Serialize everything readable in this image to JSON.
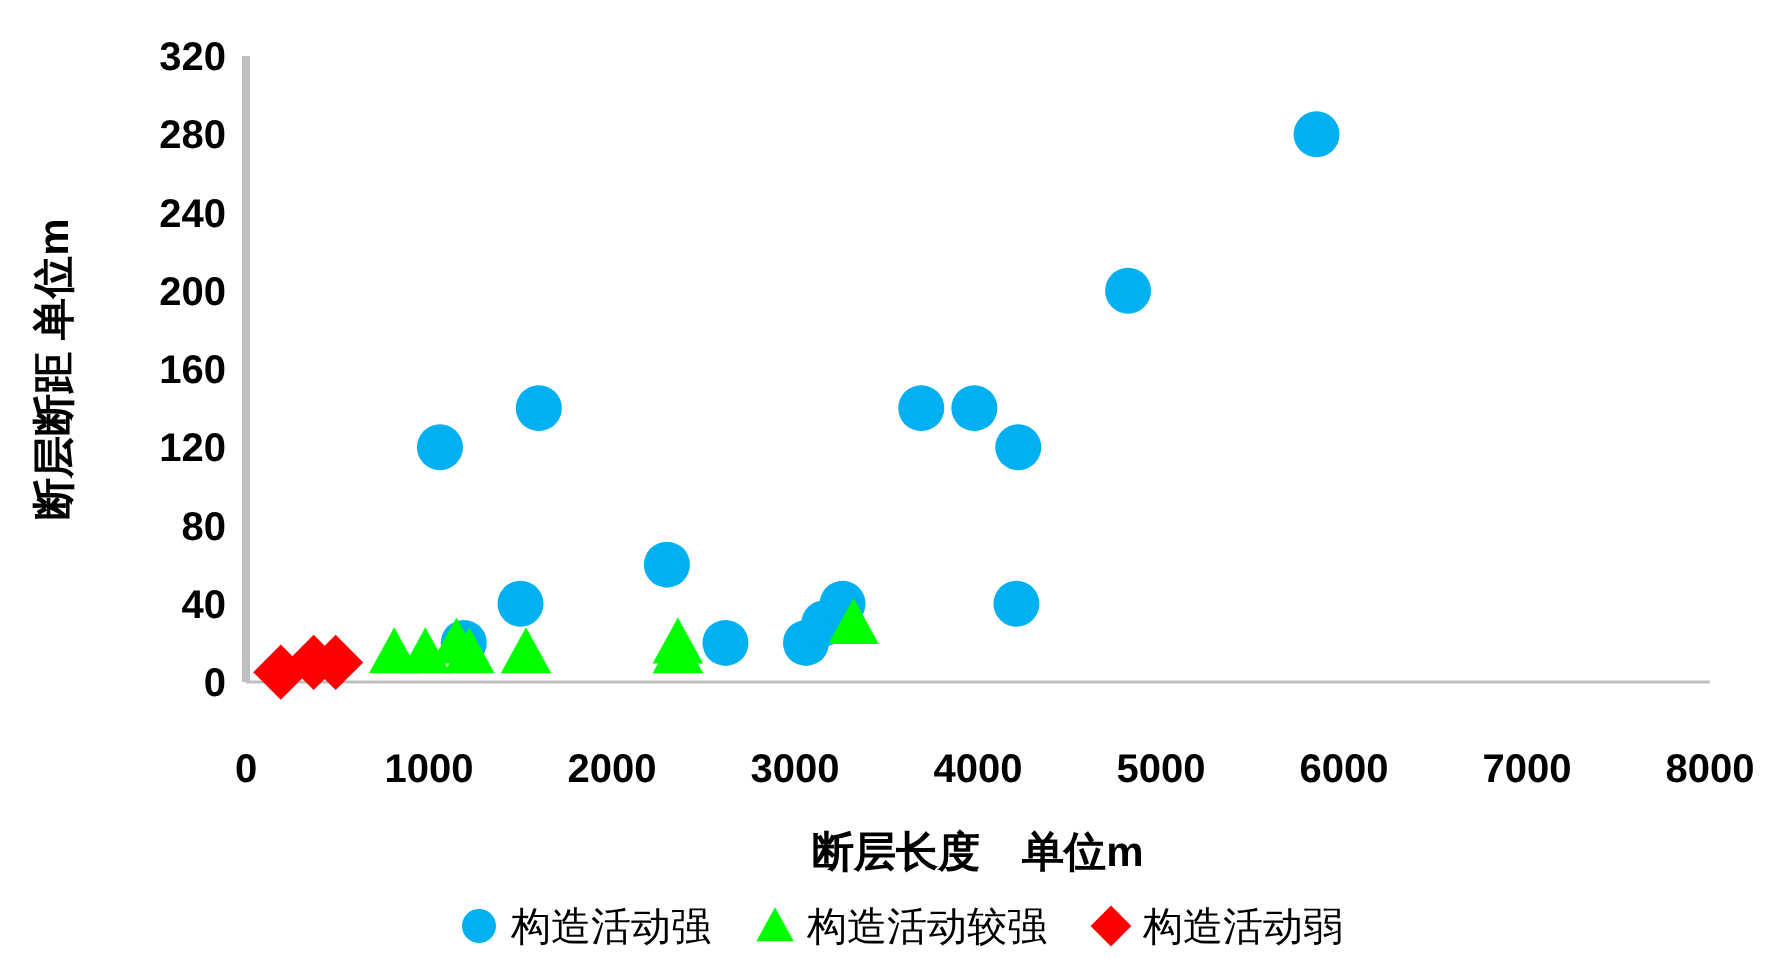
{
  "chart_data": {
    "type": "scatter",
    "xlabel": "断层长度　单位m",
    "ylabel": "断层断距 单位m",
    "xlim": [
      0,
      8000
    ],
    "ylim": [
      0,
      320
    ],
    "xticks": [
      0,
      1000,
      2000,
      3000,
      4000,
      5000,
      6000,
      7000,
      8000
    ],
    "yticks": [
      0,
      40,
      80,
      120,
      160,
      200,
      240,
      280,
      320
    ],
    "grid": false,
    "legend": "bottom",
    "series": [
      {
        "name": "构造活动强",
        "color": "#00b0f0",
        "marker": "circle",
        "x": [
          1060,
          1600,
          1190,
          1500,
          2300,
          2620,
          3060,
          3160,
          3260,
          3690,
          3980,
          4220,
          4210,
          4820,
          5850
        ],
        "values": [
          120,
          140,
          20,
          40,
          60,
          20,
          20,
          30,
          40,
          140,
          140,
          120,
          40,
          200,
          280
        ]
      },
      {
        "name": "构造活动较强",
        "color": "#00ff00",
        "marker": "triangle",
        "x": [
          810,
          980,
          1150,
          1220,
          1530,
          2360,
          2360,
          3320
        ],
        "values": [
          15,
          15,
          20,
          15,
          15,
          20,
          15,
          30
        ]
      },
      {
        "name": "构造活动弱",
        "color": "#ff0000",
        "marker": "diamond",
        "x": [
          190,
          370,
          490
        ],
        "values": [
          5,
          10,
          10
        ]
      }
    ]
  }
}
